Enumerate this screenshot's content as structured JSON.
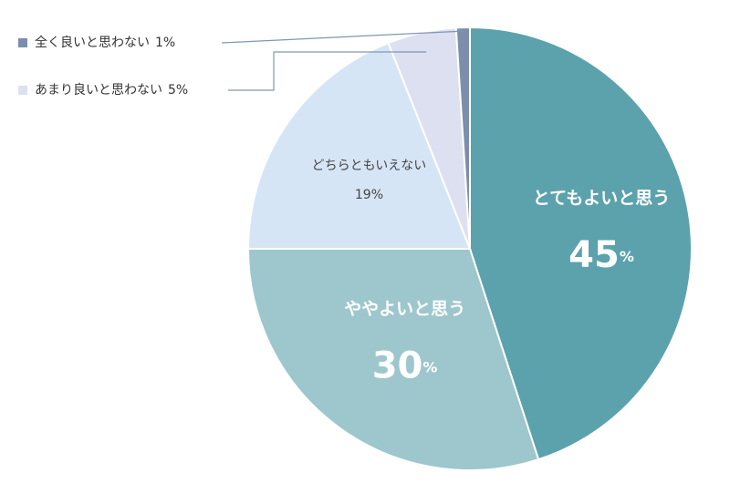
{
  "chart_data": {
    "type": "pie",
    "categories": [
      "とてもよいと思う",
      "ややよいと思う",
      "どちらともいえない",
      "あまり良いと思わない",
      "全く良いと思わない"
    ],
    "values": [
      45,
      30,
      19,
      5,
      1
    ],
    "unit": "%",
    "colors": [
      "#5ba2ad",
      "#9dc6cd",
      "#d6e5f6",
      "#dce0f0",
      "#7b8fac"
    ]
  }
}
